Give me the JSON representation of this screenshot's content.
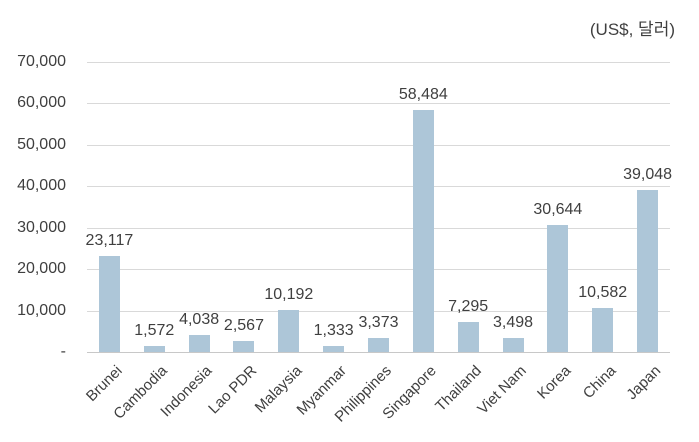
{
  "chart_data": {
    "type": "bar",
    "unit_label": "(US$, 달러)",
    "categories": [
      "Brunei",
      "Cambodia",
      "Indonesia",
      "Lao PDR",
      "Malaysia",
      "Myanmar",
      "Philippines",
      "Singapore",
      "Thailand",
      "Viet Nam",
      "Korea",
      "China",
      "Japan"
    ],
    "values": [
      23117,
      1572,
      4038,
      2567,
      10192,
      1333,
      3373,
      58484,
      7295,
      3498,
      30644,
      10582,
      39048
    ],
    "value_labels": [
      "23,117",
      "1,572",
      "4,038",
      "2,567",
      "10,192",
      "1,333",
      "3,373",
      "58,484",
      "7,295",
      "3,498",
      "30,644",
      "10,582",
      "39,048"
    ],
    "y_ticks": [
      {
        "value": 70000,
        "label": "70,000"
      },
      {
        "value": 60000,
        "label": "60,000"
      },
      {
        "value": 50000,
        "label": "50,000"
      },
      {
        "value": 40000,
        "label": "40,000"
      },
      {
        "value": 30000,
        "label": "30,000"
      },
      {
        "value": 20000,
        "label": "20,000"
      },
      {
        "value": 10000,
        "label": "10,000"
      },
      {
        "value": 0,
        "label": "-"
      }
    ],
    "ylim": [
      0,
      70000
    ],
    "grid": true,
    "legend": "none",
    "title": "",
    "xlabel": "",
    "ylabel": "",
    "colors": {
      "bar": "#adc6d8",
      "gridline": "#d9d9d9",
      "text": "#3f3f3f"
    }
  }
}
